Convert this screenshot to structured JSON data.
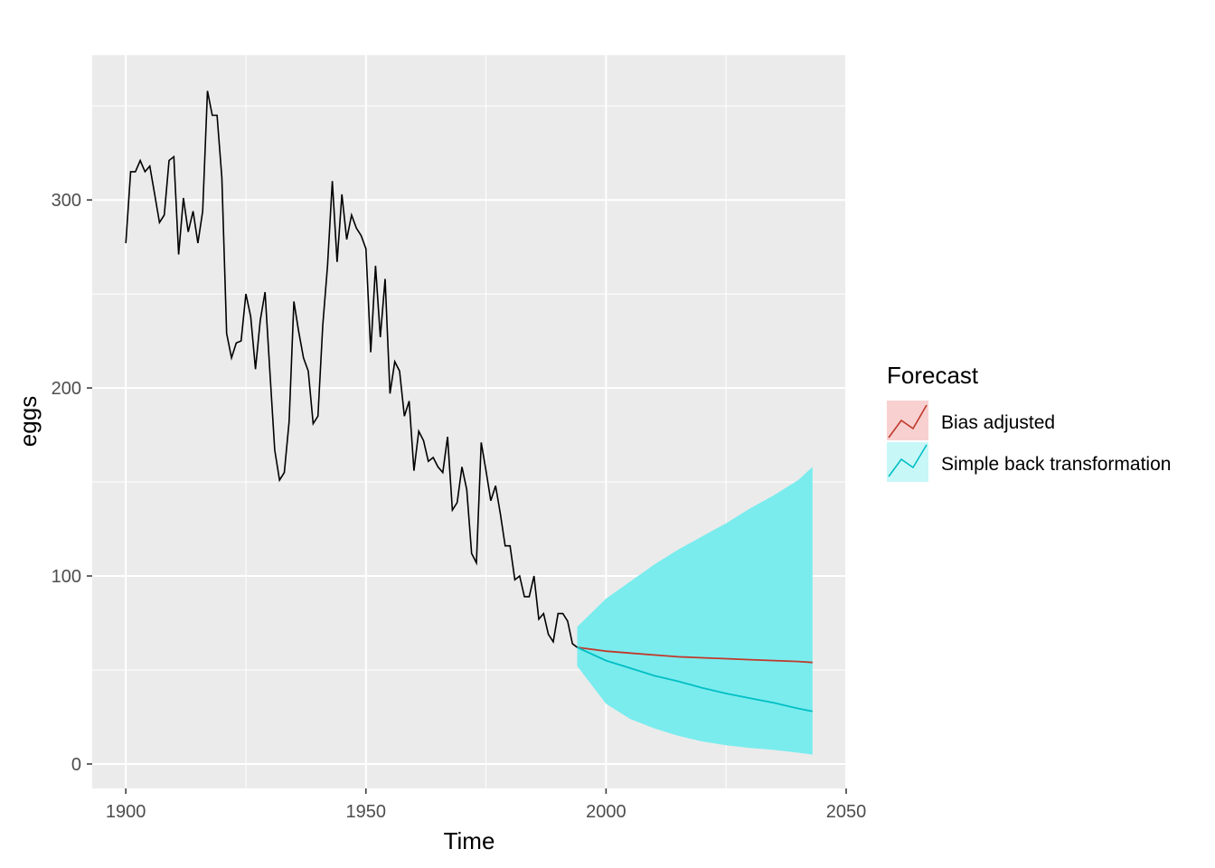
{
  "chart_data": {
    "type": "line",
    "title": "",
    "xlabel": "Time",
    "ylabel": "eggs",
    "xlim": [
      1893,
      2050
    ],
    "ylim": [
      -13,
      377
    ],
    "x_ticks": [
      1900,
      1950,
      2000,
      2050
    ],
    "x_tick_labels": [
      "1900",
      "1950",
      "2000",
      "2050"
    ],
    "y_ticks": [
      0,
      100,
      200,
      300
    ],
    "y_tick_labels": [
      "0",
      "100",
      "200",
      "300"
    ],
    "grid": true,
    "background": "#ebebeb",
    "legend": {
      "title": "Forecast",
      "placement": "right",
      "entries": [
        {
          "label": "Bias adjusted",
          "color": "#c0392b",
          "fill": "#f8d0d0"
        },
        {
          "label": "Simple back transformation",
          "color": "#00bfc4",
          "fill": "#c8f7f8"
        }
      ]
    },
    "history": {
      "color": "#000000",
      "x_start": 1900,
      "values": [
        277,
        315,
        315,
        321,
        315,
        318,
        303,
        288,
        292,
        321,
        323,
        271,
        301,
        283,
        294,
        277,
        294,
        358,
        345,
        345,
        312,
        229,
        216,
        224,
        225,
        250,
        238,
        210,
        236,
        251,
        209,
        167,
        151,
        155,
        182,
        246,
        230,
        216,
        209,
        181,
        185,
        233,
        265,
        310,
        267,
        303,
        279,
        292,
        285,
        281,
        274,
        219,
        265,
        227,
        258,
        197,
        214,
        209,
        185,
        193,
        156,
        177,
        172,
        161,
        163,
        158,
        155,
        174,
        135,
        139,
        158,
        146,
        112,
        107,
        171,
        156,
        140,
        148,
        133,
        116,
        116,
        98,
        100,
        89,
        89,
        100,
        77,
        80,
        69,
        65,
        80,
        80,
        76,
        64,
        62
      ]
    },
    "forecast": {
      "x": [
        1994,
        2000,
        2005,
        2010,
        2015,
        2020,
        2025,
        2030,
        2035,
        2040,
        2043
      ],
      "band_color": "#7aecee",
      "upper": [
        73,
        88,
        97,
        106,
        114,
        121,
        128,
        136,
        143,
        151,
        158
      ],
      "lower": [
        52,
        32,
        24,
        19,
        15,
        12,
        10,
        8.5,
        7.5,
        6,
        5
      ],
      "series": [
        {
          "name": "Bias adjusted",
          "color": "#c0392b",
          "values": [
            62,
            60,
            59,
            58,
            57,
            56.5,
            56,
            55.5,
            55,
            54.5,
            54
          ]
        },
        {
          "name": "Simple back transformation",
          "color": "#00bfc4",
          "values": [
            62,
            55,
            51,
            47,
            44,
            40.5,
            37.5,
            35,
            32.5,
            29.5,
            28
          ]
        }
      ]
    }
  }
}
